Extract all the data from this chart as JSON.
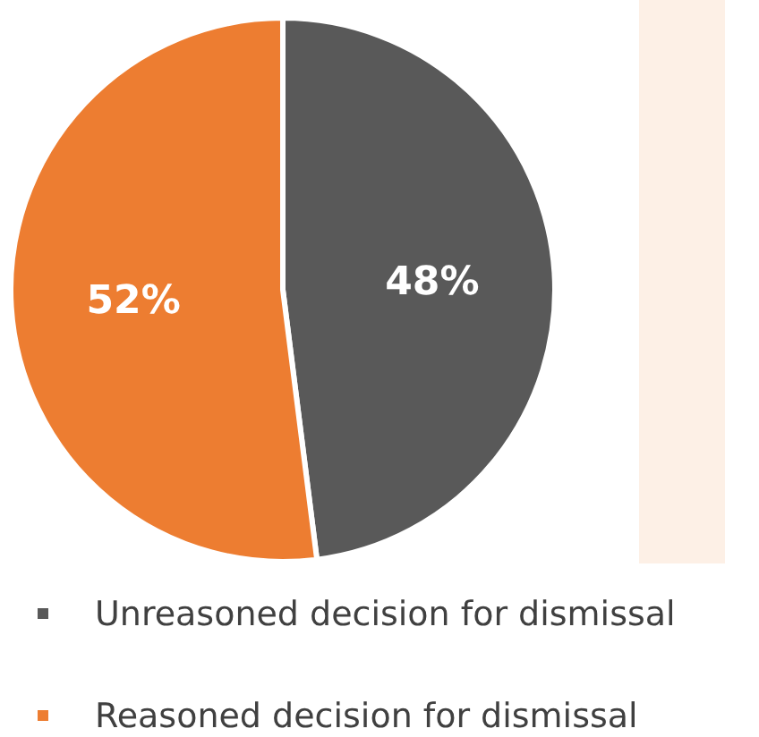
{
  "chart_data": {
    "type": "pie",
    "categories": [
      "Unreasoned decision for dismissal",
      "Reasoned decision for dismissal"
    ],
    "values": [
      48,
      52
    ],
    "colors": [
      "#595959",
      "#ed7d31"
    ],
    "value_labels": [
      "48%",
      "52%"
    ],
    "legend": "bottom"
  }
}
